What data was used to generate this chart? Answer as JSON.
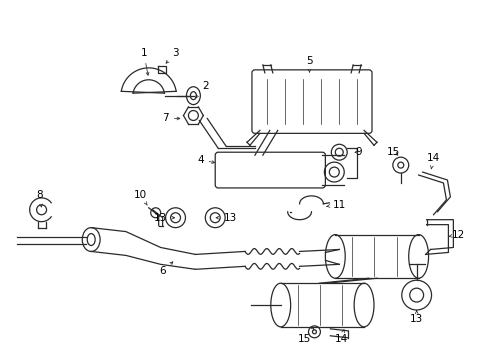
{
  "background_color": "#ffffff",
  "line_color": "#2a2a2a",
  "label_color": "#000000",
  "label_fontsize": 7.5,
  "figsize": [
    4.89,
    3.6
  ],
  "dpi": 100
}
